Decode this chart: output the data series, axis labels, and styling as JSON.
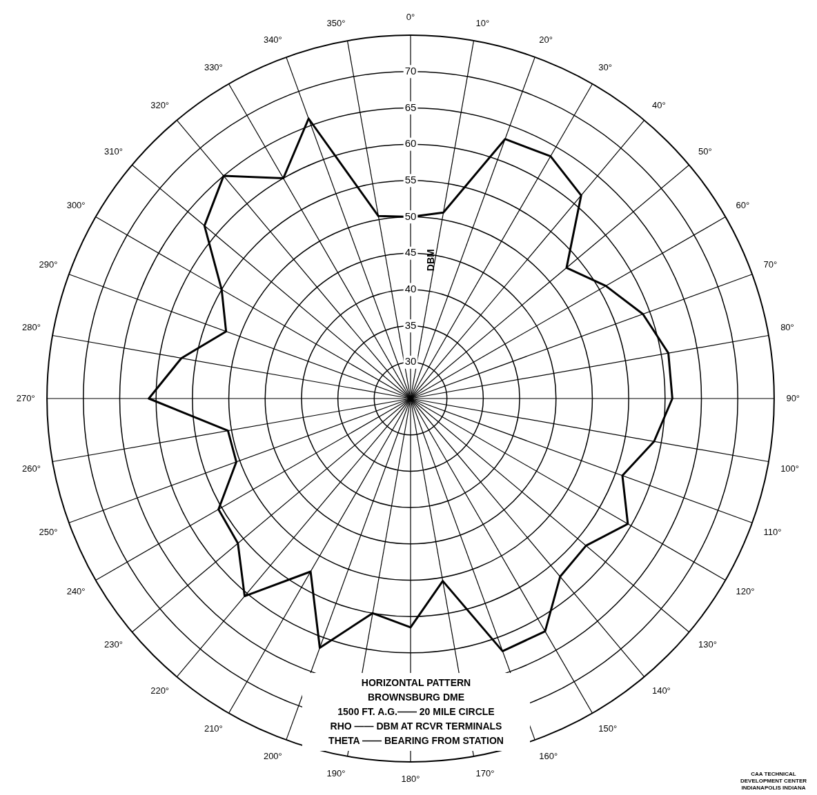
{
  "chart_data": {
    "type": "radar",
    "title": "HORIZONTAL PATTERN",
    "subtitle": "BROWNSBURG DME",
    "ylabel": "DBM",
    "annotations": [
      "1500 FT. A.G.—— 20 MILE CIRCLE",
      "RHO —— DBM AT RCVR TERMINALS",
      "THETA —— BEARING FROM STATION",
      "CAA TECHNICAL DEVELOPMENT CENTER INDIANAPOLIS INDIANA"
    ],
    "categories": [
      "0°",
      "10°",
      "20°",
      "30°",
      "40°",
      "50°",
      "60°",
      "70°",
      "80°",
      "90°",
      "100°",
      "110°",
      "120°",
      "130°",
      "140°",
      "150°",
      "160°",
      "170°",
      "180°",
      "190°",
      "200°",
      "210°",
      "220°",
      "230°",
      "240°",
      "250°",
      "260°",
      "270°",
      "280°",
      "290°",
      "300°",
      "310°",
      "320°",
      "330°",
      "340°",
      "350°"
    ],
    "series": [
      {
        "color": "#000000",
        "values": [
          50,
          51,
          63,
          63.5,
          61.5,
          53,
          56,
          59,
          61,
          61,
          59,
          56,
          59.5,
          56.5,
          57,
          62,
          62,
          50.5,
          56.5,
          55,
          61.5,
          52.5,
          60.5,
          56,
          55.5,
          50.5,
          50.5,
          61,
          57,
          52,
          55,
          62,
          65,
          60,
          66,
          50.5
        ]
      }
    ],
    "ylim": [
      25,
      75
    ],
    "yticks": [
      30,
      35,
      40,
      45,
      50,
      55,
      60,
      65,
      70
    ],
    "grid": true,
    "legend": false,
    "marker": "none",
    "line_style": "solid"
  }
}
